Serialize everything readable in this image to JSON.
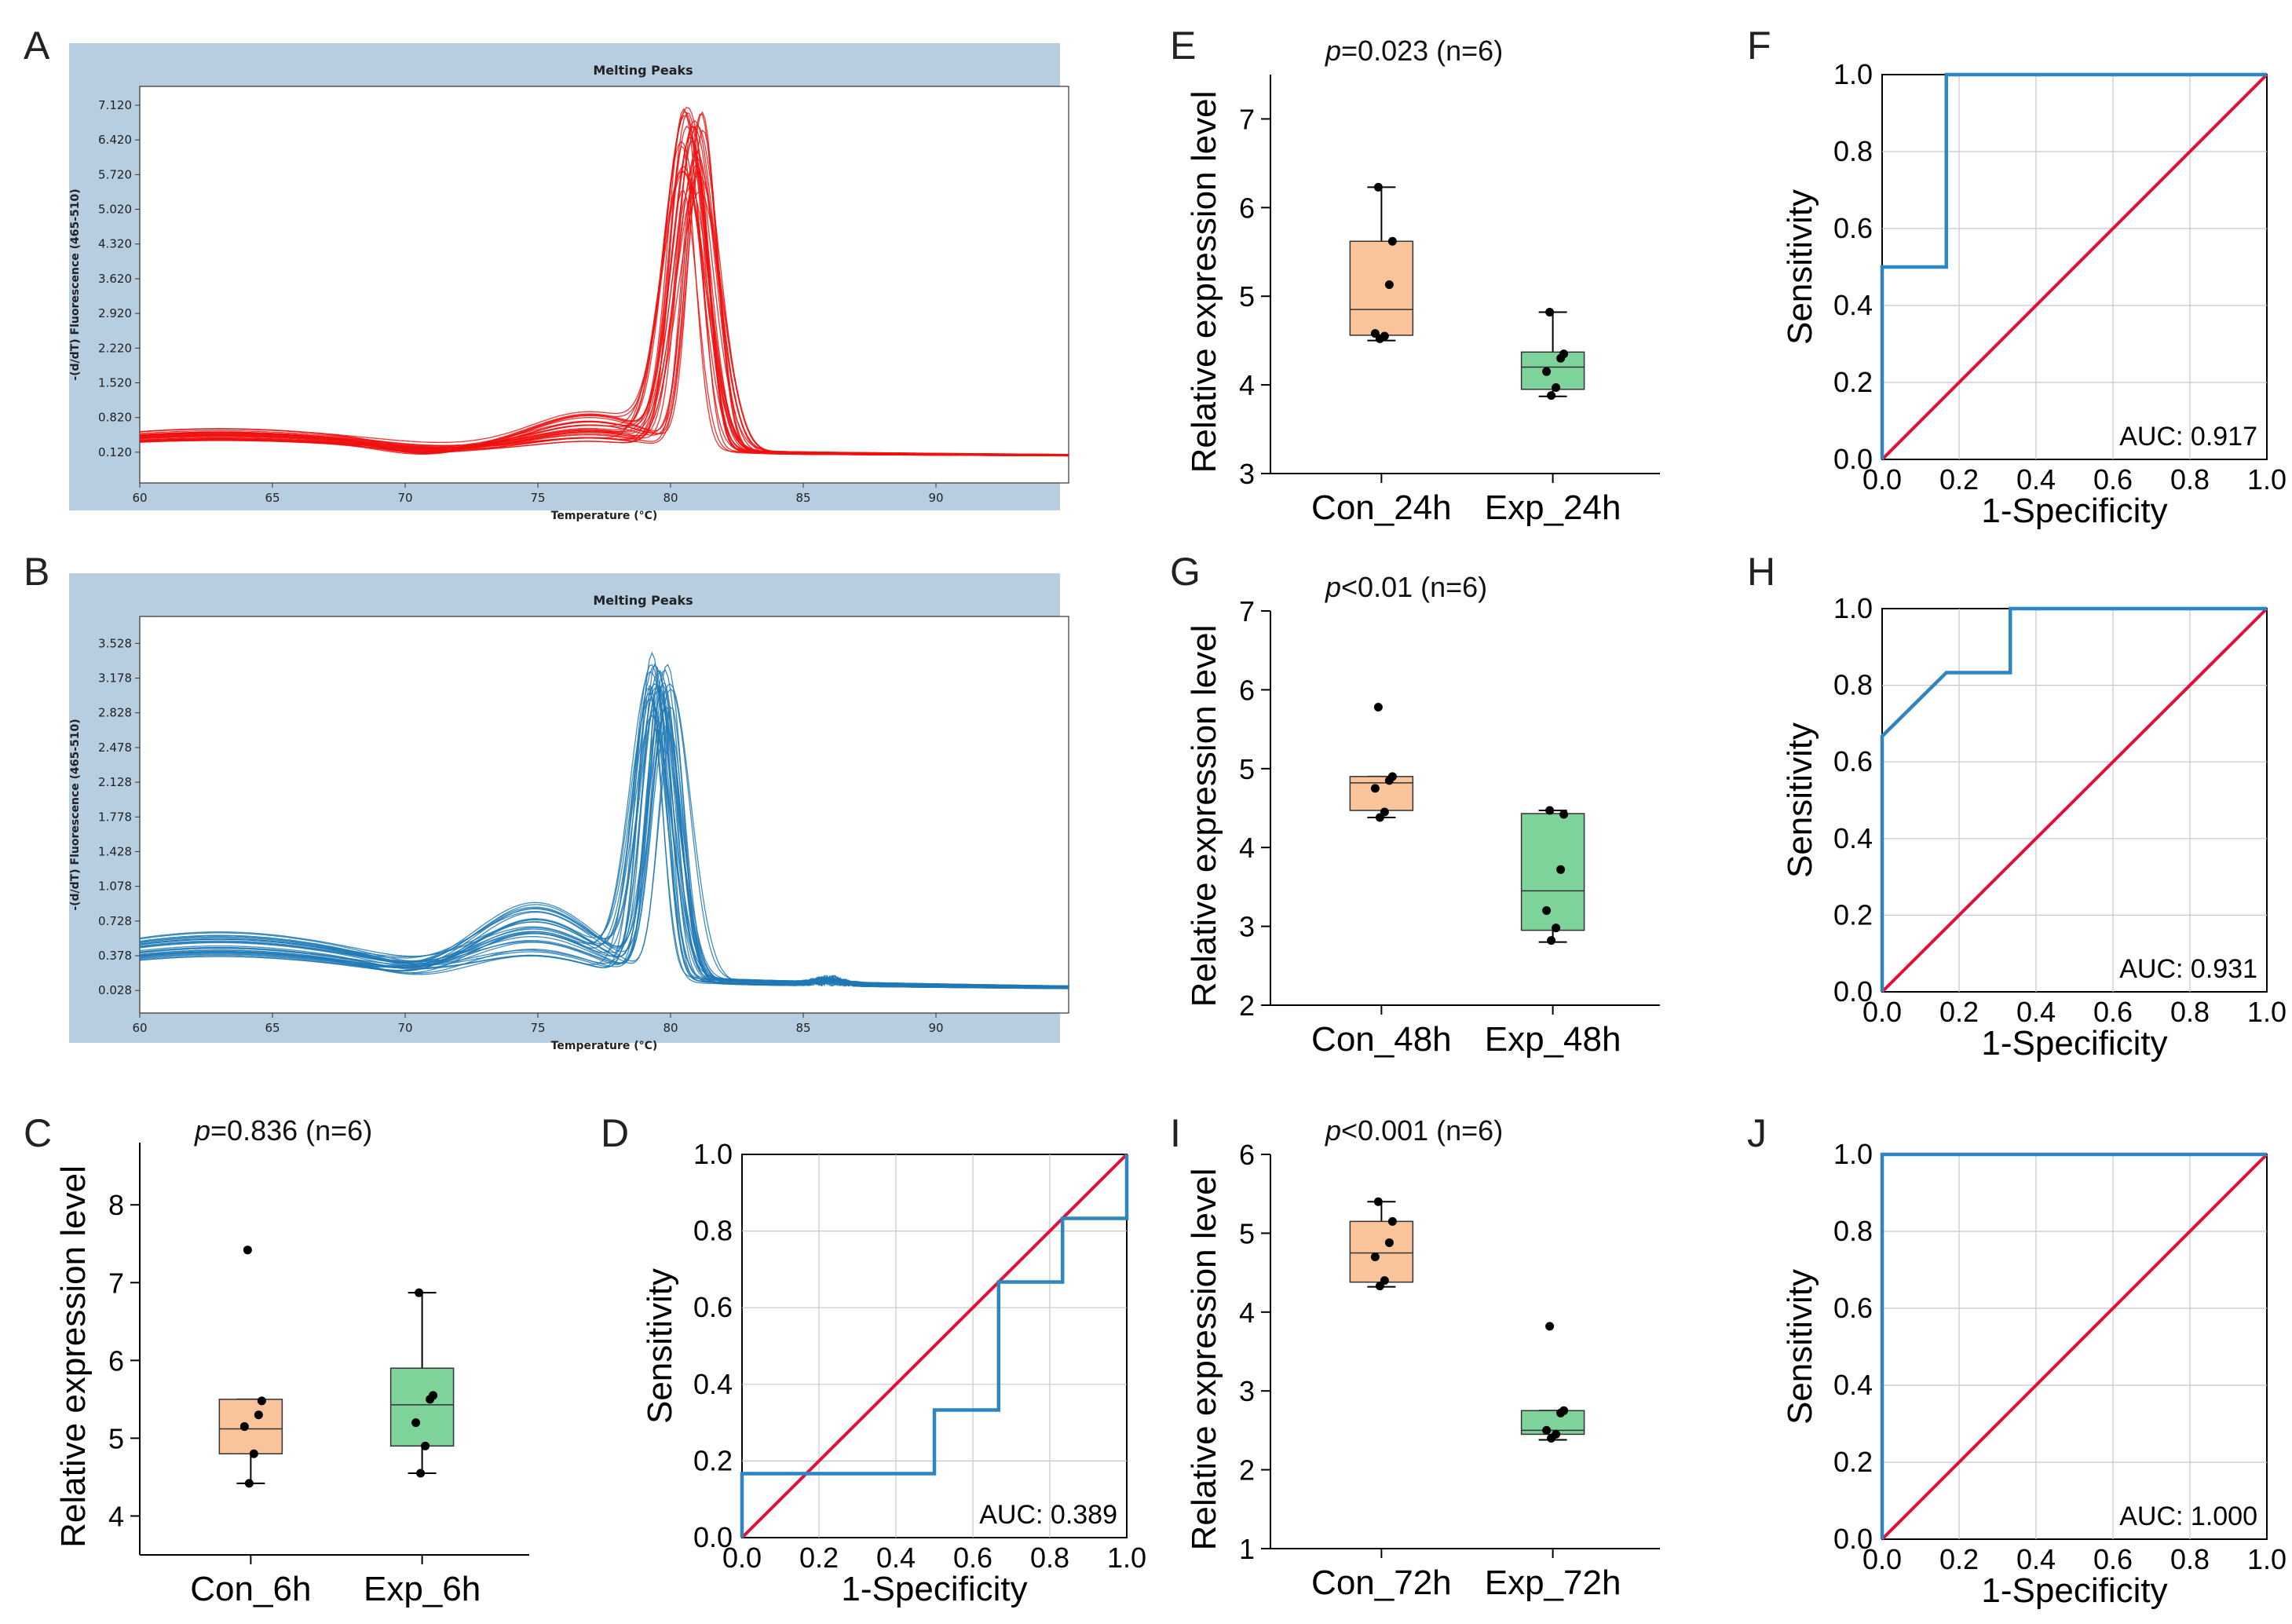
{
  "colors": {
    "con_box": "#F9C49A",
    "exp_box": "#7ED39A",
    "roc_curve": "#2E86C1",
    "diagonal": "#E0103A",
    "red_curves": "#EE1111",
    "blue_curves": "#1F78B4",
    "melt_bg": "#B7CDE0"
  },
  "chart_data": [
    {
      "panel": "A",
      "type": "line",
      "title": "Melting Peaks",
      "xlabel": "Temperature (°C)",
      "ylabel": "-(d/dT) Fluorescence (465-510)",
      "xlim": [
        60,
        95
      ],
      "ylim": [
        -0.5,
        7.5
      ],
      "xticks": [
        "60",
        "65",
        "70",
        "75",
        "80",
        "85",
        "90"
      ],
      "yticks": [
        "0.120",
        "0.820",
        "1.520",
        "2.220",
        "2.920",
        "3.620",
        "4.320",
        "5.020",
        "5.720",
        "6.420",
        "7.120"
      ],
      "n_curves": 30,
      "peak_temp": 80.8,
      "peak_height": 6.5
    },
    {
      "panel": "B",
      "type": "line",
      "title": "Melting Peaks",
      "xlabel": "Temperature (°C)",
      "ylabel": "-(d/dT) Fluorescence (465-510)",
      "xlim": [
        60,
        95
      ],
      "ylim": [
        -0.2,
        3.8
      ],
      "xticks": [
        "60",
        "65",
        "70",
        "75",
        "80",
        "85",
        "90"
      ],
      "yticks": [
        "0.028",
        "0.378",
        "0.728",
        "1.078",
        "1.428",
        "1.778",
        "2.128",
        "2.478",
        "2.828",
        "3.178",
        "3.528"
      ],
      "n_curves": 30,
      "peak_temp": 79.6,
      "peak_height": 3.1
    },
    {
      "panel": "C",
      "type": "box",
      "pvalue": "=0.836 (n=6)",
      "ylabel": "Relative expression level",
      "ylim": [
        3.5,
        8.8
      ],
      "yticks": [
        "4",
        "5",
        "6",
        "7",
        "8"
      ],
      "categories": [
        "Con_6h",
        "Exp_6h"
      ],
      "groups": [
        {
          "name": "Con_6h",
          "min": 4.42,
          "q1": 4.8,
          "median": 5.12,
          "q3": 5.5,
          "max": 5.5,
          "points": [
            7.42,
            5.48,
            5.3,
            5.15,
            4.8,
            4.42
          ],
          "color": "con"
        },
        {
          "name": "Exp_6h",
          "min": 4.55,
          "q1": 4.9,
          "median": 5.43,
          "q3": 5.9,
          "max": 6.87,
          "points": [
            6.87,
            5.55,
            5.5,
            5.2,
            4.9,
            4.55
          ],
          "color": "exp"
        }
      ]
    },
    {
      "panel": "D",
      "type": "roc",
      "auc": "AUC: 0.389",
      "xlabel": "1-Specificity",
      "ylabel": "Sensitivity",
      "ticks": [
        "0.0",
        "0.2",
        "0.4",
        "0.6",
        "0.8",
        "1.0"
      ],
      "fpr": [
        0,
        0,
        0.5,
        0.5,
        0.667,
        0.667,
        0.833,
        0.833,
        1,
        1
      ],
      "tpr": [
        0,
        0.167,
        0.167,
        0.333,
        0.333,
        0.667,
        0.667,
        0.833,
        0.833,
        1
      ]
    },
    {
      "panel": "E",
      "type": "box",
      "pvalue": "=0.023 (n=6)",
      "ylabel": "Relative expression level",
      "ylim": [
        3,
        7.5
      ],
      "yticks": [
        "3",
        "4",
        "5",
        "6",
        "7"
      ],
      "categories": [
        "Con_24h",
        "Exp_24h"
      ],
      "groups": [
        {
          "name": "Con_24h",
          "min": 4.5,
          "q1": 4.56,
          "median": 4.85,
          "q3": 5.62,
          "max": 6.23,
          "points": [
            6.23,
            5.62,
            5.13,
            4.58,
            4.55,
            4.52
          ],
          "color": "con"
        },
        {
          "name": "Exp_24h",
          "min": 3.87,
          "q1": 3.95,
          "median": 4.2,
          "q3": 4.37,
          "max": 4.82,
          "points": [
            4.82,
            4.35,
            4.3,
            4.15,
            3.97,
            3.88
          ],
          "color": "exp"
        }
      ]
    },
    {
      "panel": "F",
      "type": "roc",
      "auc": "AUC: 0.917",
      "xlabel": "1-Specificity",
      "ylabel": "Sensitivity",
      "ticks": [
        "0.0",
        "0.2",
        "0.4",
        "0.6",
        "0.8",
        "1.0"
      ],
      "fpr": [
        0,
        0,
        0.167,
        0.167,
        1
      ],
      "tpr": [
        0,
        0.5,
        0.5,
        1,
        1
      ]
    },
    {
      "panel": "G",
      "type": "box",
      "pvalue": "<0.01 (n=6)",
      "ylabel": "Relative expression level",
      "ylim": [
        2,
        7
      ],
      "yticks": [
        "2",
        "3",
        "4",
        "5",
        "6",
        "7"
      ],
      "categories": [
        "Con_48h",
        "Exp_48h"
      ],
      "groups": [
        {
          "name": "Con_48h",
          "min": 4.38,
          "q1": 4.47,
          "median": 4.82,
          "q3": 4.9,
          "max": 4.9,
          "points": [
            5.78,
            4.9,
            4.85,
            4.75,
            4.45,
            4.38
          ],
          "color": "con"
        },
        {
          "name": "Exp_48h",
          "min": 2.8,
          "q1": 2.95,
          "median": 3.45,
          "q3": 4.43,
          "max": 4.47,
          "points": [
            4.47,
            4.42,
            3.72,
            3.2,
            2.98,
            2.82
          ],
          "color": "exp"
        }
      ]
    },
    {
      "panel": "H",
      "type": "roc",
      "auc": "AUC: 0.931",
      "xlabel": "1-Specificity",
      "ylabel": "Sensitivity",
      "ticks": [
        "0.0",
        "0.2",
        "0.4",
        "0.6",
        "0.8",
        "1.0"
      ],
      "fpr": [
        0,
        0,
        0.167,
        0.333,
        0.333,
        1
      ],
      "tpr": [
        0,
        0.667,
        0.833,
        0.833,
        1,
        1
      ]
    },
    {
      "panel": "I",
      "type": "box",
      "pvalue": "<0.001 (n=6)",
      "ylabel": "Relative expression level",
      "ylim": [
        1,
        6
      ],
      "yticks": [
        "1",
        "2",
        "3",
        "4",
        "5",
        "6"
      ],
      "categories": [
        "Con_72h",
        "Exp_72h"
      ],
      "groups": [
        {
          "name": "Con_72h",
          "min": 4.32,
          "q1": 4.38,
          "median": 4.75,
          "q3": 5.15,
          "max": 5.4,
          "points": [
            5.4,
            5.15,
            4.88,
            4.7,
            4.4,
            4.33
          ],
          "color": "con"
        },
        {
          "name": "Exp_72h",
          "min": 2.38,
          "q1": 2.45,
          "median": 2.5,
          "q3": 2.75,
          "max": 2.75,
          "points": [
            3.82,
            2.75,
            2.72,
            2.5,
            2.45,
            2.4
          ],
          "color": "exp"
        }
      ]
    },
    {
      "panel": "J",
      "type": "roc",
      "auc": "AUC: 1.000",
      "xlabel": "1-Specificity",
      "ylabel": "Sensitivity",
      "ticks": [
        "0.0",
        "0.2",
        "0.4",
        "0.6",
        "0.8",
        "1.0"
      ],
      "fpr": [
        0,
        0,
        1
      ],
      "tpr": [
        0,
        1,
        1
      ]
    }
  ]
}
